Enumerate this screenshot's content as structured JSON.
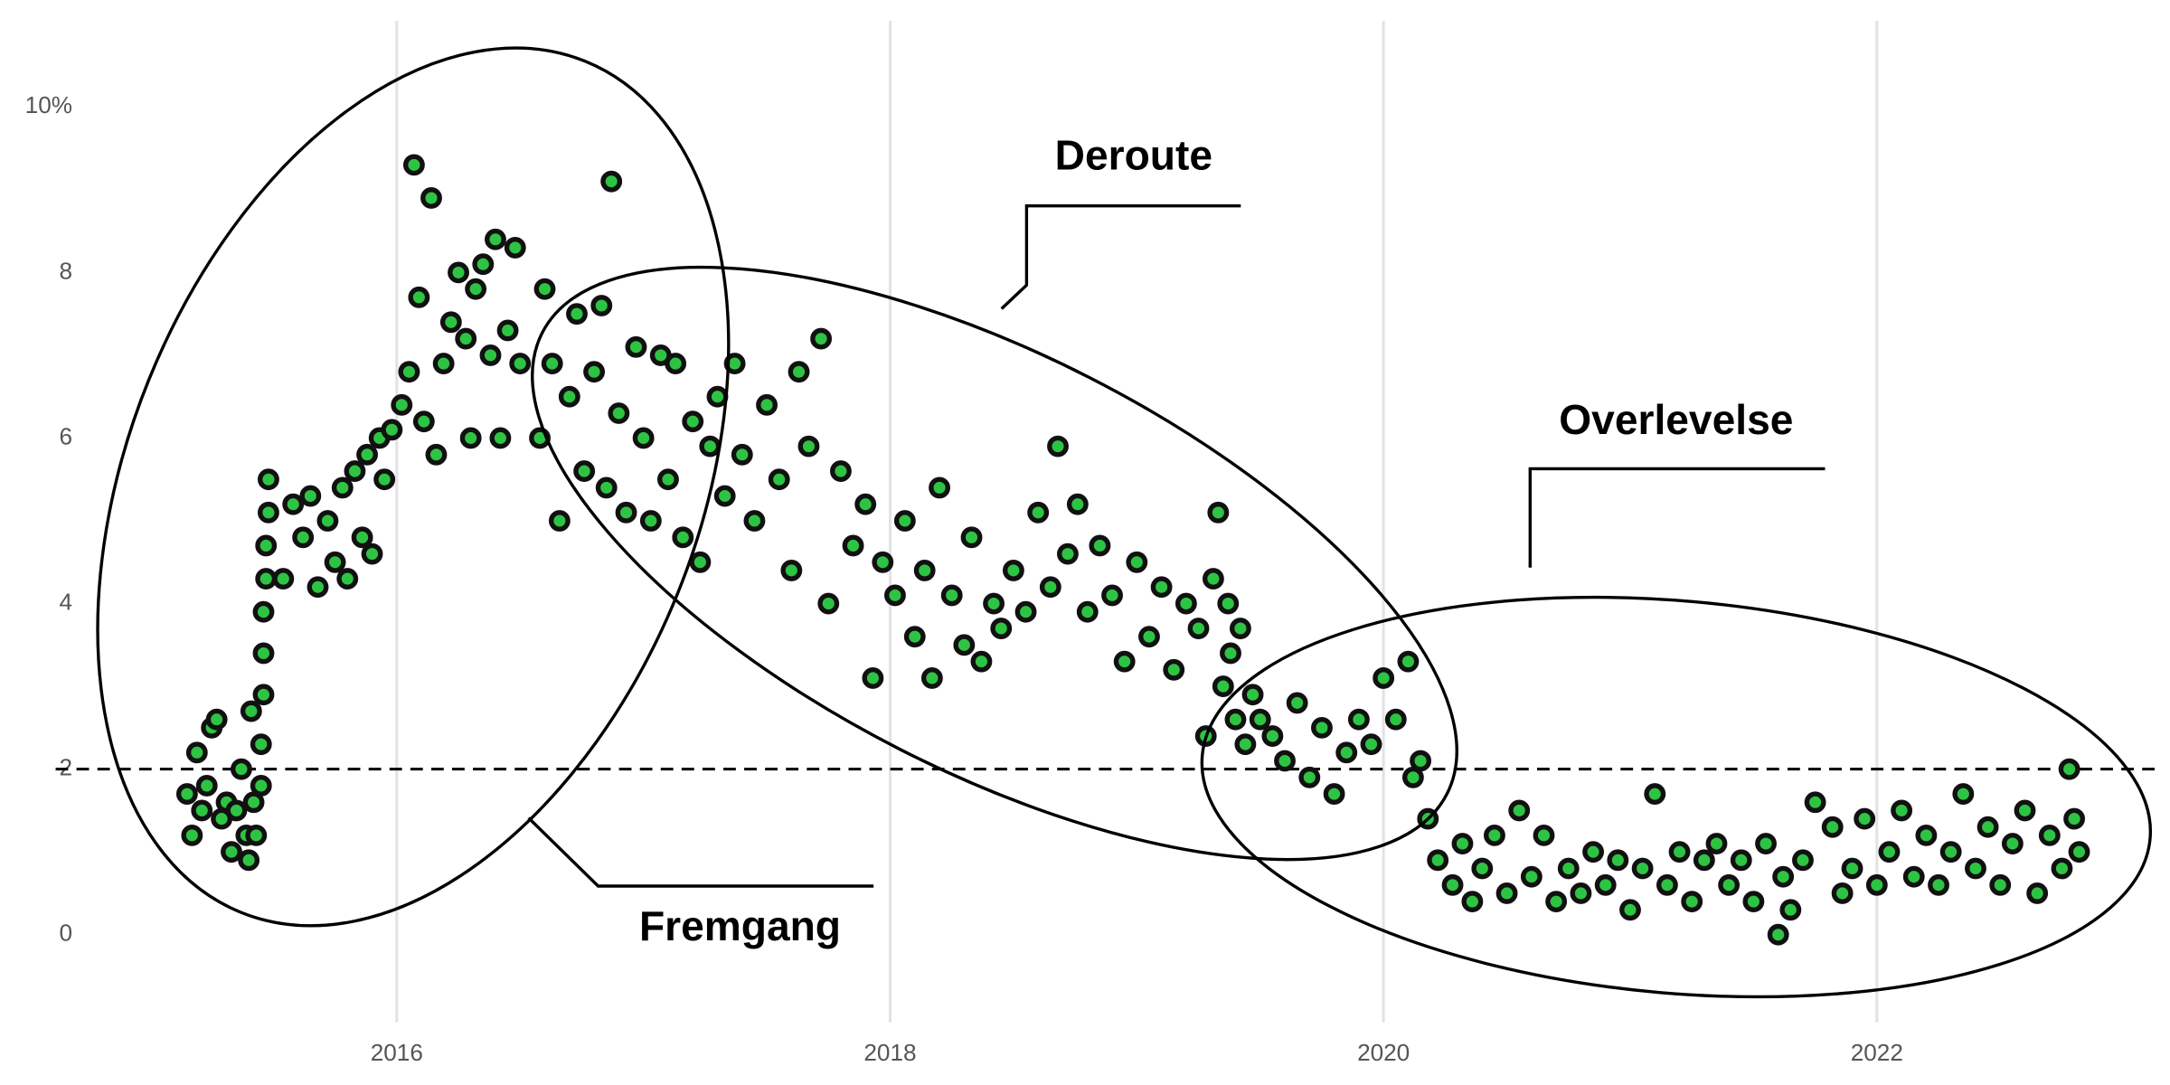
{
  "chart_data": {
    "type": "scatter",
    "color": "#2ec443",
    "xlim": [
      2014.73,
      2023.16
    ],
    "ylim": [
      -1.06,
      11.04
    ],
    "xticks": [
      2016,
      2018,
      2020,
      2022
    ],
    "yticks": [
      0,
      2,
      4,
      6,
      8,
      {
        "value": 10,
        "label": "10%"
      }
    ],
    "grid": "x",
    "reference_line": 2,
    "annotations": [
      "Fremgang",
      "Deroute",
      "Overlevelse"
    ],
    "x": [
      2015.15,
      2015.17,
      2015.19,
      2015.21,
      2015.23,
      2015.25,
      2015.27,
      2015.29,
      2015.31,
      2015.33,
      2015.35,
      2015.37,
      2015.39,
      2015.4,
      2015.41,
      2015.42,
      2015.43,
      2015.45,
      2015.45,
      2015.46,
      2015.46,
      2015.46,
      2015.47,
      2015.47,
      2015.48,
      2015.48,
      2015.54,
      2015.58,
      2015.62,
      2015.65,
      2015.68,
      2015.72,
      2015.75,
      2015.78,
      2015.8,
      2015.83,
      2015.86,
      2015.88,
      2015.9,
      2015.93,
      2015.95,
      2015.98,
      2016.02,
      2016.05,
      2016.07,
      2016.09,
      2016.11,
      2016.14,
      2016.16,
      2016.19,
      2016.22,
      2016.25,
      2016.28,
      2016.3,
      2016.32,
      2016.35,
      2016.38,
      2016.4,
      2016.42,
      2016.45,
      2016.48,
      2016.5,
      2016.58,
      2016.6,
      2016.63,
      2016.66,
      2016.7,
      2016.73,
      2016.76,
      2016.8,
      2016.83,
      2016.85,
      2016.87,
      2016.9,
      2016.93,
      2016.97,
      2017.0,
      2017.03,
      2017.07,
      2017.1,
      2017.13,
      2017.16,
      2017.2,
      2017.23,
      2017.27,
      2017.3,
      2017.33,
      2017.37,
      2017.4,
      2017.45,
      2017.5,
      2017.55,
      2017.6,
      2017.63,
      2017.67,
      2017.72,
      2017.75,
      2017.8,
      2017.85,
      2017.9,
      2017.93,
      2017.97,
      2018.02,
      2018.06,
      2018.1,
      2018.14,
      2018.17,
      2018.2,
      2018.25,
      2018.3,
      2018.33,
      2018.37,
      2018.42,
      2018.45,
      2018.5,
      2018.55,
      2018.6,
      2018.65,
      2018.68,
      2018.72,
      2018.76,
      2018.8,
      2018.85,
      2018.9,
      2018.95,
      2019.0,
      2019.05,
      2019.1,
      2019.15,
      2019.2,
      2019.25,
      2019.28,
      2019.31,
      2019.33,
      2019.35,
      2019.37,
      2019.38,
      2019.4,
      2019.42,
      2019.44,
      2019.47,
      2019.5,
      2019.55,
      2019.6,
      2019.65,
      2019.7,
      2019.75,
      2019.8,
      2019.85,
      2019.9,
      2019.95,
      2020.0,
      2020.05,
      2020.1,
      2020.12,
      2020.15,
      2020.18,
      2020.22,
      2020.28,
      2020.32,
      2020.36,
      2020.4,
      2020.45,
      2020.5,
      2020.55,
      2020.6,
      2020.65,
      2020.7,
      2020.75,
      2020.8,
      2020.85,
      2020.9,
      2020.95,
      2021.0,
      2021.05,
      2021.1,
      2021.15,
      2021.2,
      2021.25,
      2021.3,
      2021.35,
      2021.4,
      2021.45,
      2021.5,
      2021.55,
      2021.6,
      2021.62,
      2021.65,
      2021.7,
      2021.75,
      2021.82,
      2021.86,
      2021.9,
      2021.95,
      2022.0,
      2022.05,
      2022.1,
      2022.15,
      2022.2,
      2022.25,
      2022.3,
      2022.35,
      2022.4,
      2022.45,
      2022.5,
      2022.55,
      2022.6,
      2022.65,
      2022.7,
      2022.75,
      2022.78,
      2022.8,
      2022.82
    ],
    "values": [
      1.7,
      1.2,
      2.2,
      1.5,
      1.8,
      2.5,
      2.6,
      1.4,
      1.6,
      1.0,
      1.5,
      2.0,
      1.2,
      0.9,
      2.7,
      1.6,
      1.2,
      1.8,
      2.3,
      2.9,
      3.4,
      3.9,
      4.3,
      4.7,
      5.1,
      5.5,
      4.3,
      5.2,
      4.8,
      5.3,
      4.2,
      5.0,
      4.5,
      5.4,
      4.3,
      5.6,
      4.8,
      5.8,
      4.6,
      6.0,
      5.5,
      6.1,
      6.4,
      6.8,
      9.3,
      7.7,
      6.2,
      8.9,
      5.8,
      6.9,
      7.4,
      8.0,
      7.2,
      6.0,
      7.8,
      8.1,
      7.0,
      8.4,
      6.0,
      7.3,
      8.3,
      6.9,
      6.0,
      7.8,
      6.9,
      5.0,
      6.5,
      7.5,
      5.6,
      6.8,
      7.6,
      5.4,
      9.1,
      6.3,
      5.1,
      7.1,
      6.0,
      5.0,
      7.0,
      5.5,
      6.9,
      4.8,
      6.2,
      4.5,
      5.9,
      6.5,
      5.3,
      6.9,
      5.8,
      5.0,
      6.4,
      5.5,
      4.4,
      6.8,
      5.9,
      7.2,
      4.0,
      5.6,
      4.7,
      5.2,
      3.1,
      4.5,
      4.1,
      5.0,
      3.6,
      4.4,
      3.1,
      5.4,
      4.1,
      3.5,
      4.8,
      3.3,
      4.0,
      3.7,
      4.4,
      3.9,
      5.1,
      4.2,
      5.9,
      4.6,
      5.2,
      3.9,
      4.7,
      4.1,
      3.3,
      4.5,
      3.6,
      4.2,
      3.2,
      4.0,
      3.7,
      2.4,
      4.3,
      5.1,
      3.0,
      4.0,
      3.4,
      2.6,
      3.7,
      2.3,
      2.9,
      2.6,
      2.4,
      2.1,
      2.8,
      1.9,
      2.5,
      1.7,
      2.2,
      2.6,
      2.3,
      3.1,
      2.6,
      3.3,
      1.9,
      2.1,
      1.4,
      0.9,
      0.6,
      1.1,
      0.4,
      0.8,
      1.2,
      0.5,
      1.5,
      0.7,
      1.2,
      0.4,
      0.8,
      0.5,
      1.0,
      0.6,
      0.9,
      0.3,
      0.8,
      1.7,
      0.6,
      1.0,
      0.4,
      0.9,
      1.1,
      0.6,
      0.9,
      0.4,
      1.1,
      0.0,
      0.7,
      0.3,
      0.9,
      1.6,
      1.3,
      0.5,
      0.8,
      1.4,
      0.6,
      1.0,
      1.5,
      0.7,
      1.2,
      0.6,
      1.0,
      1.7,
      0.8,
      1.3,
      0.6,
      1.1,
      1.5,
      0.5,
      1.2,
      0.8,
      2.0,
      1.4,
      1.0
    ]
  }
}
